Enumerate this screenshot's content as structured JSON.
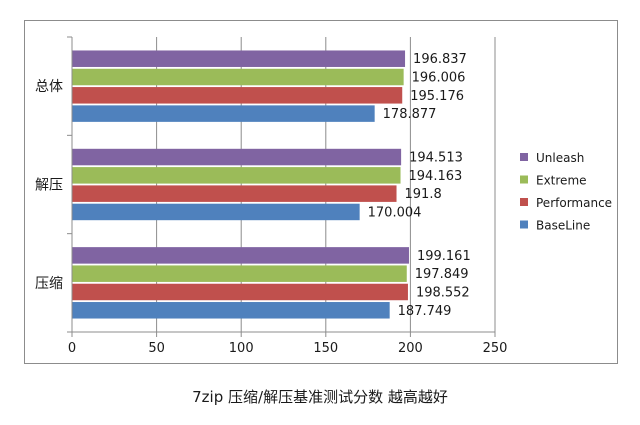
{
  "chart_data": {
    "type": "bar",
    "orientation": "horizontal",
    "title": "7zip  压缩/解压基准测试分数  越高越好",
    "categories": [
      "总体",
      "解压",
      "压缩"
    ],
    "series": [
      {
        "name": "Unleash",
        "color": "#8064a2",
        "values": [
          196.837,
          194.513,
          199.161
        ]
      },
      {
        "name": "Extreme",
        "color": "#9bbb59",
        "values": [
          196.006,
          194.163,
          197.849
        ]
      },
      {
        "name": "Performance",
        "color": "#c0504d",
        "values": [
          195.176,
          191.8,
          198.552
        ]
      },
      {
        "name": "BaseLine",
        "color": "#4f81bd",
        "values": [
          178.877,
          170.004,
          187.749
        ]
      }
    ],
    "value_labels": [
      [
        "196.837",
        "194.513",
        "199.161"
      ],
      [
        "196.006",
        "194.163",
        "197.849"
      ],
      [
        "195.176",
        "191.8",
        "198.552"
      ],
      [
        "178.877",
        "170.004",
        "187.749"
      ]
    ],
    "xlim": [
      0,
      250
    ],
    "xticks": [
      "0",
      "50",
      "100",
      "150",
      "200",
      "250"
    ],
    "grid": "vertical",
    "legend": "right"
  }
}
